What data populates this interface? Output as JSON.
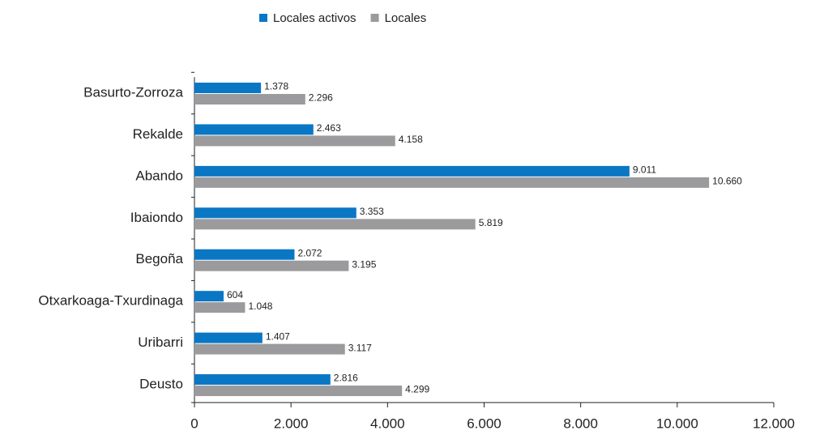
{
  "chart_data": {
    "type": "bar",
    "orientation": "horizontal",
    "categories": [
      "Basurto-Zorroza",
      "Rekalde",
      "Abando",
      "Ibaiondo",
      "Begoña",
      "Otxarkoaga-Txurdinaga",
      "Uribarri",
      "Deusto"
    ],
    "series": [
      {
        "name": "Locales activos",
        "color": "#0a77c5",
        "values": [
          1378,
          2463,
          9011,
          3353,
          2072,
          604,
          1407,
          2816
        ],
        "value_labels": [
          "1.378",
          "2.463",
          "9.011",
          "3.353",
          "2.072",
          "604",
          "1.407",
          "2.816"
        ]
      },
      {
        "name": "Locales",
        "color": "#9b9b9d",
        "values": [
          2296,
          4158,
          10660,
          5819,
          3195,
          1048,
          3117,
          4299
        ],
        "value_labels": [
          "2.296",
          "4.158",
          "10.660",
          "5.819",
          "3.195",
          "1.048",
          "3.117",
          "4.299"
        ]
      }
    ],
    "xlim": [
      0,
      12000
    ],
    "xticks": [
      0,
      {
        "value": 2000,
        "label": "2.000"
      },
      {
        "value": 4000,
        "label": "4.000"
      },
      {
        "value": 6000,
        "label": "6.000"
      },
      {
        "value": 8000,
        "label": "8.000"
      },
      {
        "value": 10000,
        "label": "10.000"
      },
      {
        "value": 12000,
        "label": "12.000"
      }
    ],
    "legend": "top"
  }
}
